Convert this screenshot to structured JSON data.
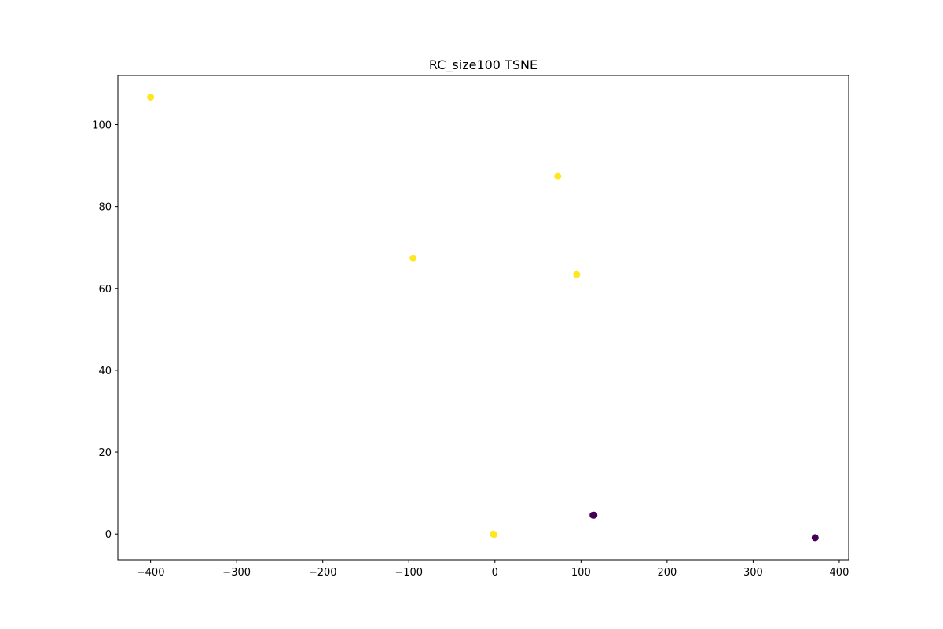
{
  "chart_data": {
    "type": "scatter",
    "title": "RC_size100 TSNE",
    "xlabel": "",
    "ylabel": "",
    "xlim": [
      -438,
      411
    ],
    "ylim": [
      -6.3,
      112
    ],
    "xticks": [
      -400,
      -300,
      -200,
      -100,
      0,
      100,
      200,
      300,
      400
    ],
    "yticks": [
      0,
      20,
      40,
      60,
      80,
      100
    ],
    "grid": false,
    "legend": "none",
    "colors": {
      "class_a": "#fde725",
      "class_b": "#440154"
    },
    "points": [
      {
        "x": -400,
        "y": 106.7,
        "color": "#fde725"
      },
      {
        "x": 73,
        "y": 87.4,
        "color": "#fde725"
      },
      {
        "x": -95,
        "y": 67.4,
        "color": "#fde725"
      },
      {
        "x": 95,
        "y": 63.4,
        "color": "#fde725"
      },
      {
        "x": -2,
        "y": 0,
        "color": "#fde725"
      },
      {
        "x": -1,
        "y": -0.1,
        "color": "#fde725"
      },
      {
        "x": 114,
        "y": 4.6,
        "color": "#440154"
      },
      {
        "x": 115,
        "y": 4.6,
        "color": "#440154"
      },
      {
        "x": 372,
        "y": -0.9,
        "color": "#440154"
      }
    ]
  }
}
